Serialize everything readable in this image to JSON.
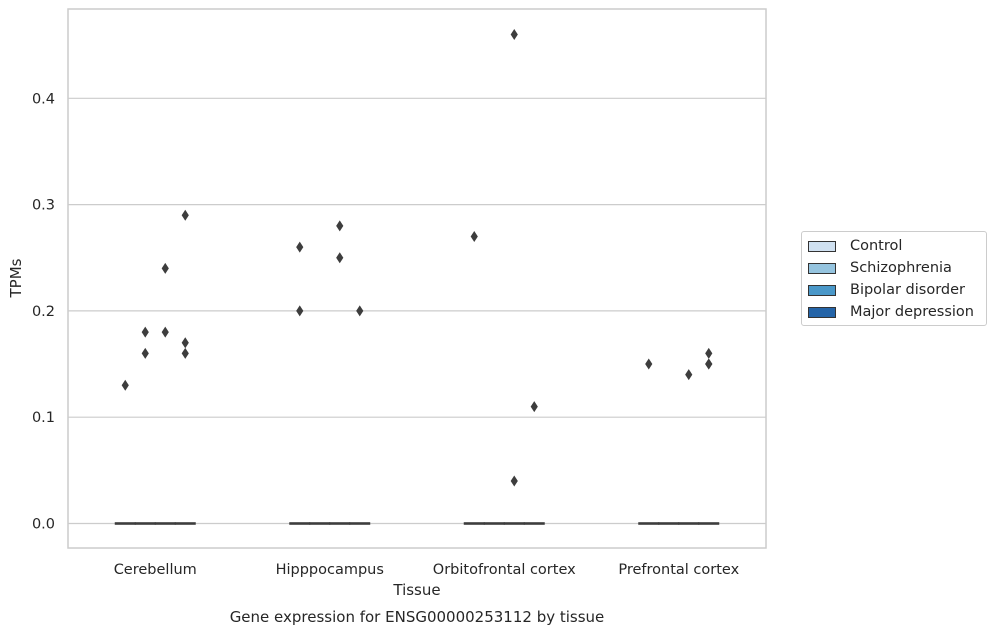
{
  "chart_data": {
    "type": "box",
    "title": "Gene expression for ENSG00000253112 by tissue",
    "xlabel": "Tissue",
    "ylabel": "TPMs",
    "ylim": [
      -0.023,
      0.483
    ],
    "yticks": [
      0.0,
      0.1,
      0.2,
      0.3,
      0.4
    ],
    "ytick_labels": [
      "0.0",
      "0.1",
      "0.2",
      "0.3",
      "0.4"
    ],
    "grid": true,
    "legend_placement": "right",
    "categories": [
      "Cerebellum",
      "Hipppocampus",
      "Orbitofrontal cortex",
      "Prefrontal cortex"
    ],
    "series": [
      {
        "name": "Control",
        "color": "#d0e1f1",
        "median": [
          0,
          0,
          0,
          0
        ],
        "outliers": [
          [
            0.13
          ],
          [
            0.26,
            0.2
          ],
          [
            0.27
          ],
          [
            0.15
          ]
        ]
      },
      {
        "name": "Schizophrenia",
        "color": "#95c4df",
        "median": [
          0,
          0,
          0,
          0
        ],
        "outliers": [
          [
            0.18,
            0.16
          ],
          [],
          [],
          []
        ]
      },
      {
        "name": "Bipolar disorder",
        "color": "#4a98c9",
        "median": [
          0,
          0,
          0,
          0
        ],
        "outliers": [
          [
            0.24,
            0.18
          ],
          [
            0.28,
            0.25
          ],
          [
            0.46,
            0.04
          ],
          [
            0.14
          ]
        ]
      },
      {
        "name": "Major depression",
        "color": "#2464a8",
        "median": [
          0,
          0,
          0,
          0
        ],
        "outliers": [
          [
            0.29,
            0.17,
            0.16
          ],
          [
            0.2
          ],
          [
            0.11
          ],
          [
            0.16,
            0.15,
            0.15
          ]
        ]
      }
    ]
  }
}
